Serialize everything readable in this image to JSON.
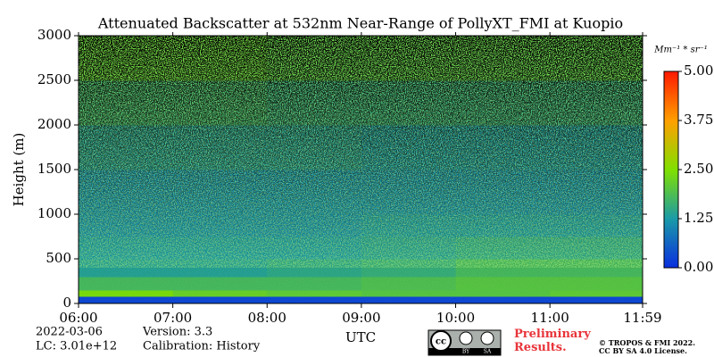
{
  "chart_data": {
    "type": "heatmap",
    "title": "Attenuated Backscatter at 532nm Near-Range of PollyXT_FMI at Kuopio",
    "y_label": "Height (m)",
    "x_label": "UTC",
    "xlim": [
      6,
      11.983
    ],
    "xticks": [
      {
        "value": 6,
        "label": "06:00"
      },
      {
        "value": 7,
        "label": "07:00"
      },
      {
        "value": 8,
        "label": "08:00"
      },
      {
        "value": 9,
        "label": "09:00"
      },
      {
        "value": 10,
        "label": "10:00"
      },
      {
        "value": 11,
        "label": "11:00"
      },
      {
        "value": 11.983,
        "label": "11:59"
      }
    ],
    "ylim": [
      0,
      3000
    ],
    "yticks": [
      0,
      500,
      1000,
      1500,
      2000,
      2500,
      3000
    ],
    "xbins": [
      6,
      7,
      8,
      9,
      10,
      11,
      11.983
    ],
    "ybins": [
      0,
      80,
      150,
      300,
      500,
      750,
      1000,
      1500,
      2000,
      2500,
      3000
    ],
    "z": [
      [
        0.3,
        0.3,
        0.3,
        0.3,
        0.3,
        0.3
      ],
      [
        2.4,
        2.2,
        2.1,
        2.0,
        2.0,
        2.1
      ],
      [
        1.8,
        1.8,
        1.8,
        1.9,
        2.0,
        2.0
      ],
      [
        1.4,
        1.4,
        1.5,
        1.6,
        1.8,
        1.8
      ],
      [
        1.3,
        1.3,
        1.3,
        1.4,
        1.5,
        1.5
      ],
      [
        1.2,
        1.2,
        1.2,
        1.3,
        1.3,
        1.3
      ],
      [
        1.2,
        1.2,
        1.2,
        1.2,
        1.2,
        1.2
      ],
      [
        1.4,
        1.4,
        1.4,
        1.3,
        1.3,
        1.3
      ],
      [
        1.7,
        1.7,
        1.6,
        1.6,
        1.6,
        1.6
      ],
      [
        2.1,
        2.1,
        2.0,
        2.0,
        2.0,
        2.0
      ]
    ],
    "colormap": [
      "#0a2ee0",
      "#1a9aa8",
      "#80e000",
      "#ffa000",
      "#ff1a00"
    ],
    "clim": [
      0,
      5
    ],
    "cticks": [
      {
        "value": 0,
        "label": "0.00"
      },
      {
        "value": 1.25,
        "label": "1.25"
      },
      {
        "value": 2.5,
        "label": "2.50"
      },
      {
        "value": 3.75,
        "label": "3.75"
      },
      {
        "value": 5,
        "label": "5.00"
      }
    ],
    "colorbar_label": "Mm⁻¹ * sr⁻¹"
  },
  "footer": {
    "date": "2022-03-06",
    "lc": "LC: 3.01e+12",
    "version": "Version: 3.3",
    "calibration": "Calibration: History",
    "license_badge": [
      "BY",
      "SA"
    ],
    "preliminary": "Preliminary Results.",
    "copyright": "© TROPOS & FMI 2022.",
    "license": "CC BY SA 4.0 License."
  }
}
